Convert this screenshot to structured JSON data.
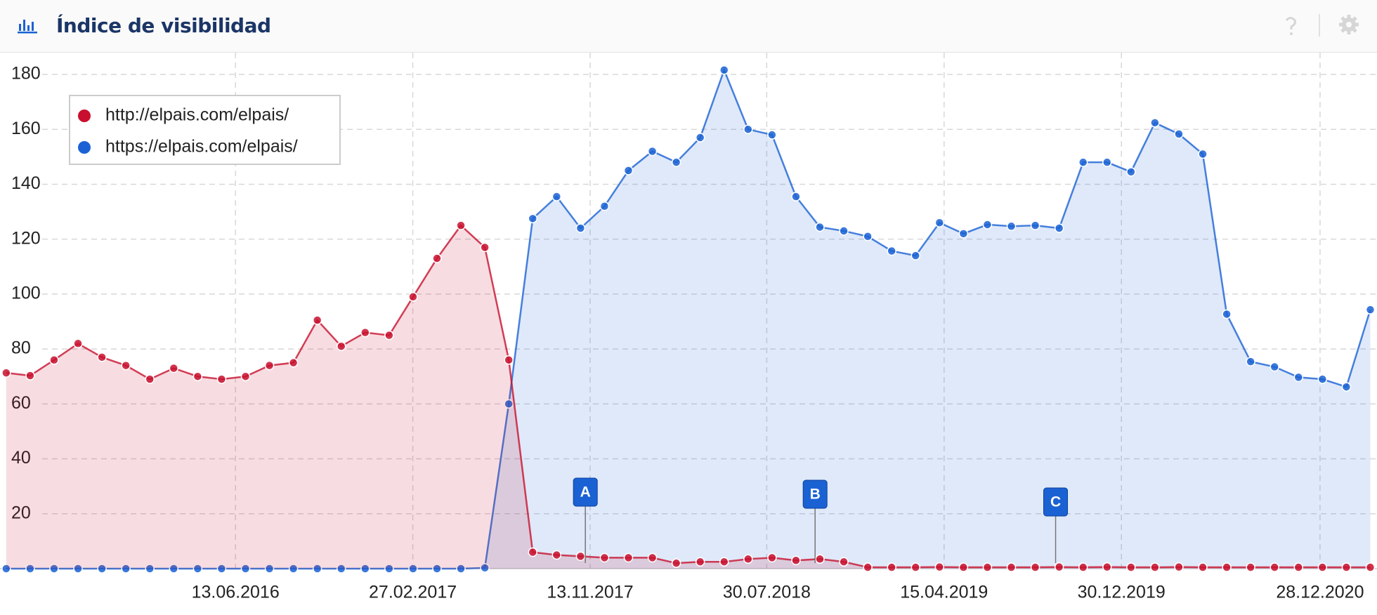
{
  "header": {
    "title": "Índice de visibilidad"
  },
  "chart_data": {
    "type": "area-line",
    "series": [
      {
        "name": "http://elpais.com/elpais/",
        "color": "#c8102e",
        "values": [
          71.3,
          70.3,
          76,
          82,
          77,
          74,
          69,
          73,
          70,
          69,
          70,
          74,
          75,
          90.5,
          81,
          86,
          85,
          99,
          113,
          125,
          117,
          76,
          6,
          5,
          4.5,
          4,
          4,
          4,
          2,
          2.5,
          2.5,
          3.5,
          4,
          3,
          3.5,
          2.5,
          0.5,
          0.5,
          0.5,
          0.6,
          0.5,
          0.5,
          0.5,
          0.5,
          0.6,
          0.5,
          0.6,
          0.5,
          0.5,
          0.6,
          0.5,
          0.5,
          0.5,
          0.5,
          0.5,
          0.5,
          0.5,
          0.5
        ]
      },
      {
        "name": "https://elpais.com/elpais/",
        "color": "#1a62d4",
        "values": [
          0,
          0,
          0,
          0,
          0,
          0,
          0,
          0,
          0,
          0,
          0,
          0,
          0,
          0,
          0,
          0,
          0,
          0,
          0,
          0,
          0.3,
          60,
          127.5,
          135.5,
          124,
          132,
          145,
          152,
          148,
          157,
          181.6,
          160,
          158,
          135.5,
          124.4,
          123,
          121,
          115.7,
          114,
          126,
          122,
          125.3,
          124.7,
          125,
          124,
          148,
          148,
          144.5,
          162.4,
          158.3,
          151,
          92.7,
          75.4,
          73.5,
          69.7,
          69,
          66.2,
          94.3
        ]
      }
    ],
    "xlim": [
      -0.26,
      57.28
    ],
    "xticks": [
      {
        "value": 9.58,
        "label": "13.06.2016"
      },
      {
        "value": 16.99,
        "label": "27.02.2017"
      },
      {
        "value": 24.4,
        "label": "13.11.2017"
      },
      {
        "value": 31.78,
        "label": "30.07.2018"
      },
      {
        "value": 39.19,
        "label": "15.04.2019"
      },
      {
        "value": 46.6,
        "label": "30.12.2019"
      },
      {
        "value": 54.9,
        "label": "28.12.2020"
      }
    ],
    "ylim": [
      0,
      180
    ],
    "yticks": [
      20,
      40,
      60,
      80,
      100,
      120,
      140,
      160,
      180
    ],
    "annotations": [
      {
        "label": "A",
        "x": 24.2
      },
      {
        "label": "B",
        "x": 33.8
      },
      {
        "label": "C",
        "x": 43.85
      }
    ],
    "grid": true,
    "legend": "top-left"
  }
}
